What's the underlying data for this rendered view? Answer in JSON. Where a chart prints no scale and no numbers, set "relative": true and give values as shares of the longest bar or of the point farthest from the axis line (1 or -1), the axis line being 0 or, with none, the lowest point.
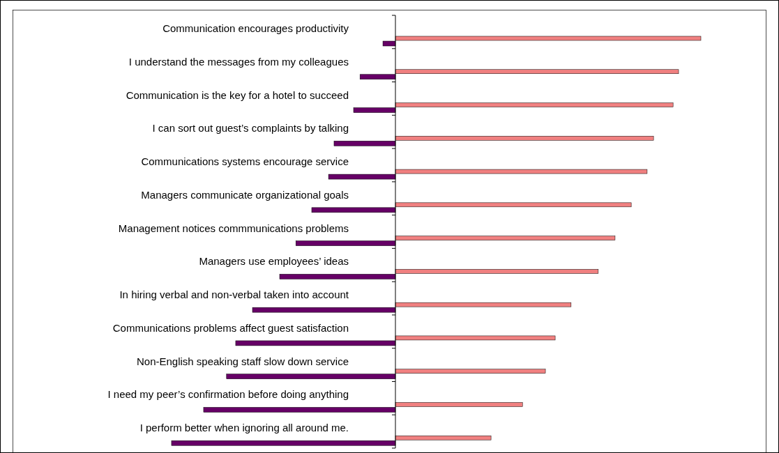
{
  "chart_data": {
    "type": "bar",
    "orientation": "horizontal",
    "relative": true,
    "categories": [
      "Communication encourages productivity",
      "I understand the messages from my colleagues",
      "Communication is the key for a hotel to succeed",
      "I can sort out guest’s complaints by talking",
      "Communications systems encourage service",
      "Managers communicate organizational goals",
      "Management notices commmunications problems",
      "Managers use employees’ ideas",
      "In hiring verbal and non-verbal taken into account",
      "Communications problems affect guest satisfaction",
      "Non-English speaking staff slow down service",
      "I need my peer’s confirmation before doing anything",
      "I perform better when ignoring all around me."
    ],
    "series": [
      {
        "color": "#f08080",
        "values": [
          1,
          0.927,
          0.909,
          0.845,
          0.824,
          0.772,
          0.719,
          0.664,
          0.575,
          0.523,
          0.491,
          0.416,
          0.313
        ]
      },
      {
        "color": "#660066",
        "values": [
          -0.041,
          -0.116,
          -0.137,
          -0.201,
          -0.219,
          -0.274,
          -0.326,
          -0.379,
          -0.468,
          -0.523,
          -0.553,
          -0.628,
          -0.733
        ]
      }
    ]
  }
}
